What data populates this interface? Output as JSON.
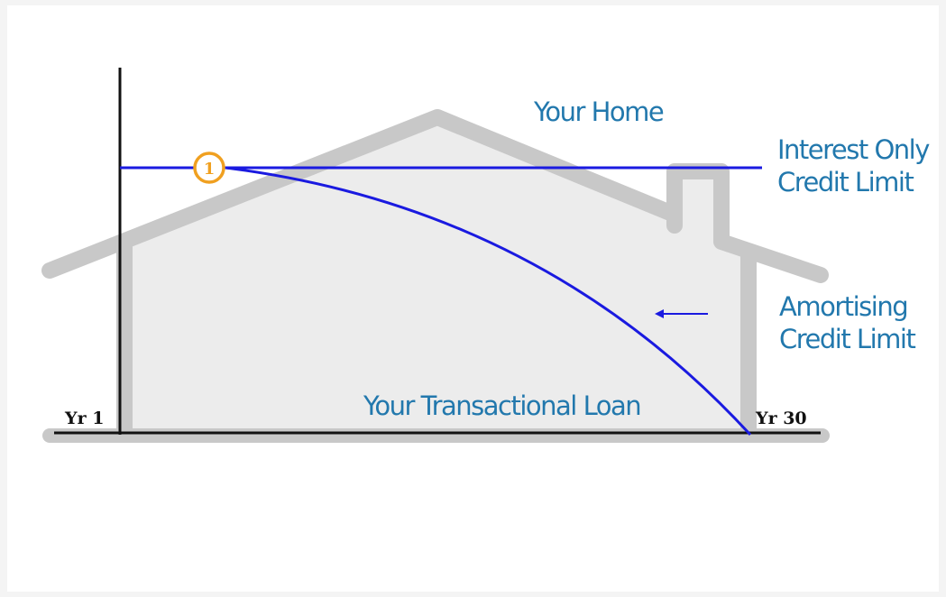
{
  "labels": {
    "home": "Your Home",
    "interest_only": [
      "Interest Only",
      "Credit Limit"
    ],
    "amortising": [
      "Amortising",
      "Credit Limit"
    ],
    "loan": "Your Transactional Loan",
    "year_start": "Yr 1",
    "year_end": "Yr 30",
    "marker": "1"
  }
}
